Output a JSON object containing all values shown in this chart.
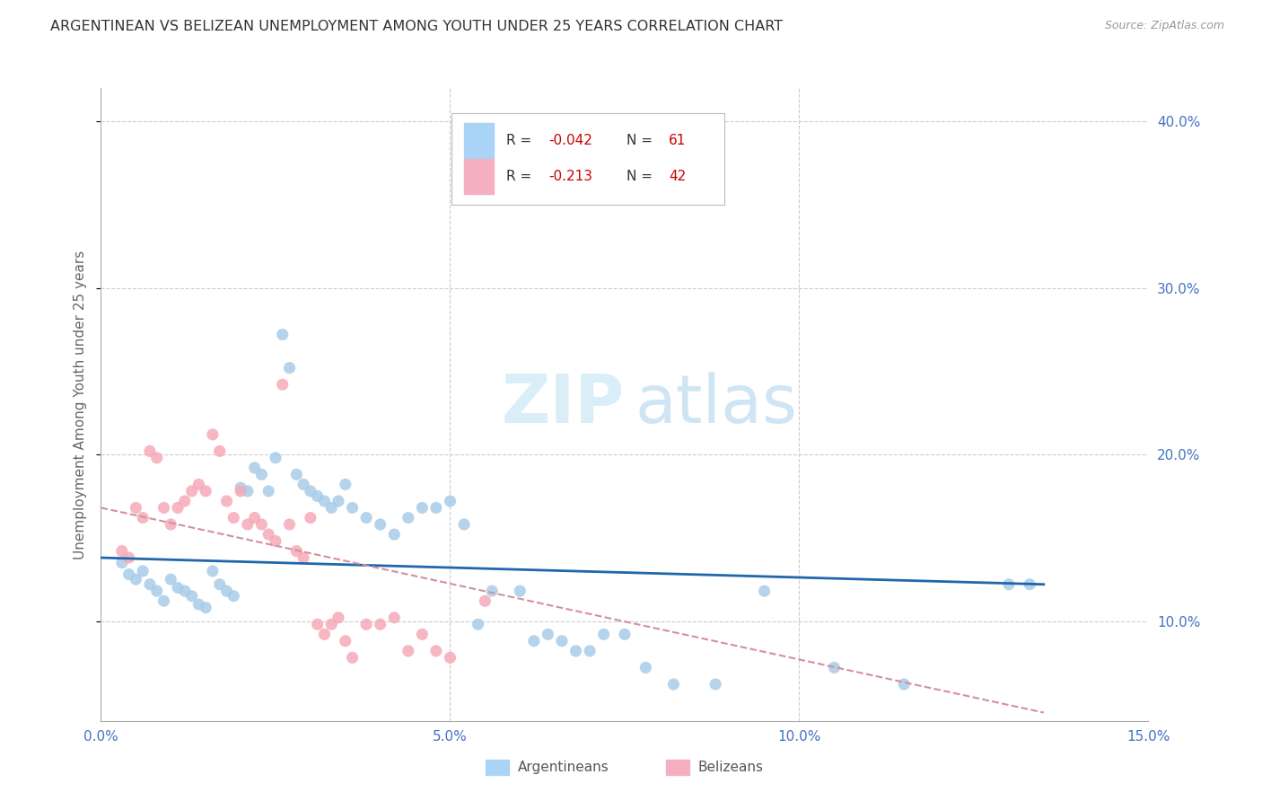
{
  "title": "ARGENTINEAN VS BELIZEAN UNEMPLOYMENT AMONG YOUTH UNDER 25 YEARS CORRELATION CHART",
  "source": "Source: ZipAtlas.com",
  "ylabel": "Unemployment Among Youth under 25 years",
  "xlim": [
    0.0,
    0.15
  ],
  "ylim": [
    0.04,
    0.42
  ],
  "blue_color": "#a8cce8",
  "pink_color": "#f5aab8",
  "blue_line_color": "#2166ac",
  "pink_line_color": "#d4909c",
  "argentinean_x": [
    0.003,
    0.004,
    0.005,
    0.006,
    0.007,
    0.008,
    0.009,
    0.01,
    0.011,
    0.012,
    0.013,
    0.014,
    0.015,
    0.016,
    0.017,
    0.018,
    0.019,
    0.02,
    0.021,
    0.022,
    0.023,
    0.024,
    0.025,
    0.026,
    0.027,
    0.028,
    0.029,
    0.03,
    0.031,
    0.032,
    0.033,
    0.034,
    0.035,
    0.036,
    0.038,
    0.04,
    0.042,
    0.044,
    0.046,
    0.048,
    0.05,
    0.052,
    0.054,
    0.056,
    0.06,
    0.062,
    0.064,
    0.066,
    0.068,
    0.07,
    0.072,
    0.075,
    0.078,
    0.082,
    0.088,
    0.095,
    0.105,
    0.115,
    0.13,
    0.133
  ],
  "argentinean_y": [
    0.135,
    0.128,
    0.125,
    0.13,
    0.122,
    0.118,
    0.112,
    0.125,
    0.12,
    0.118,
    0.115,
    0.11,
    0.108,
    0.13,
    0.122,
    0.118,
    0.115,
    0.18,
    0.178,
    0.192,
    0.188,
    0.178,
    0.198,
    0.272,
    0.252,
    0.188,
    0.182,
    0.178,
    0.175,
    0.172,
    0.168,
    0.172,
    0.182,
    0.168,
    0.162,
    0.158,
    0.152,
    0.162,
    0.168,
    0.168,
    0.172,
    0.158,
    0.098,
    0.118,
    0.118,
    0.088,
    0.092,
    0.088,
    0.082,
    0.082,
    0.092,
    0.092,
    0.072,
    0.062,
    0.062,
    0.118,
    0.072,
    0.062,
    0.122,
    0.122
  ],
  "belizean_x": [
    0.003,
    0.004,
    0.005,
    0.006,
    0.007,
    0.008,
    0.009,
    0.01,
    0.011,
    0.012,
    0.013,
    0.014,
    0.015,
    0.016,
    0.017,
    0.018,
    0.019,
    0.02,
    0.021,
    0.022,
    0.023,
    0.024,
    0.025,
    0.026,
    0.027,
    0.028,
    0.029,
    0.03,
    0.031,
    0.032,
    0.033,
    0.034,
    0.035,
    0.036,
    0.038,
    0.04,
    0.042,
    0.044,
    0.046,
    0.048,
    0.05,
    0.055
  ],
  "belizean_y": [
    0.142,
    0.138,
    0.168,
    0.162,
    0.202,
    0.198,
    0.168,
    0.158,
    0.168,
    0.172,
    0.178,
    0.182,
    0.178,
    0.212,
    0.202,
    0.172,
    0.162,
    0.178,
    0.158,
    0.162,
    0.158,
    0.152,
    0.148,
    0.242,
    0.158,
    0.142,
    0.138,
    0.162,
    0.098,
    0.092,
    0.098,
    0.102,
    0.088,
    0.078,
    0.098,
    0.098,
    0.102,
    0.082,
    0.092,
    0.082,
    0.078,
    0.112
  ],
  "blue_trend_x": [
    0.0,
    0.135
  ],
  "blue_trend_y": [
    0.138,
    0.122
  ],
  "pink_trend_x": [
    0.0,
    0.135
  ],
  "pink_trend_y": [
    0.168,
    0.045
  ],
  "background_color": "#ffffff",
  "grid_color": "#cccccc"
}
